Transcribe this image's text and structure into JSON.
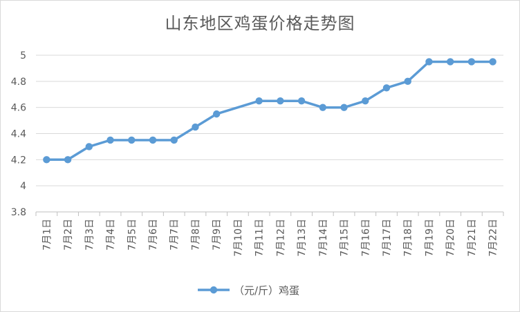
{
  "chart_data": {
    "type": "line",
    "title": "山东地区鸡蛋价格走势图",
    "xlabel": "",
    "ylabel": "",
    "categories": [
      "7月1日",
      "7月2日",
      "7月3日",
      "7月4日",
      "7月5日",
      "7月6日",
      "7月7日",
      "7月8日",
      "7月9日",
      "7月10日",
      "7月11日",
      "7月12日",
      "7月13日",
      "7月14日",
      "7月15日",
      "7月16日",
      "7月17日",
      "7月18日",
      "7月19日",
      "7月20日",
      "7月21日",
      "7月22日"
    ],
    "series": [
      {
        "name": "（元/斤）鸡蛋",
        "values": [
          4.2,
          4.2,
          4.3,
          4.35,
          4.35,
          4.35,
          4.35,
          4.45,
          4.55,
          null,
          4.65,
          4.65,
          4.65,
          4.6,
          4.6,
          4.65,
          4.75,
          4.8,
          4.95,
          4.95,
          4.95,
          4.95
        ],
        "color": "#5b9bd5"
      }
    ],
    "ylim": [
      3.8,
      5
    ],
    "yticks": [
      "3.8",
      "4",
      "4.2",
      "4.4",
      "4.6",
      "4.8",
      "5"
    ],
    "grid": true,
    "legend_position": "bottom",
    "gridline_color": "#d9d9d9",
    "axis_color": "#bfbfbf",
    "text_color": "#595959"
  }
}
